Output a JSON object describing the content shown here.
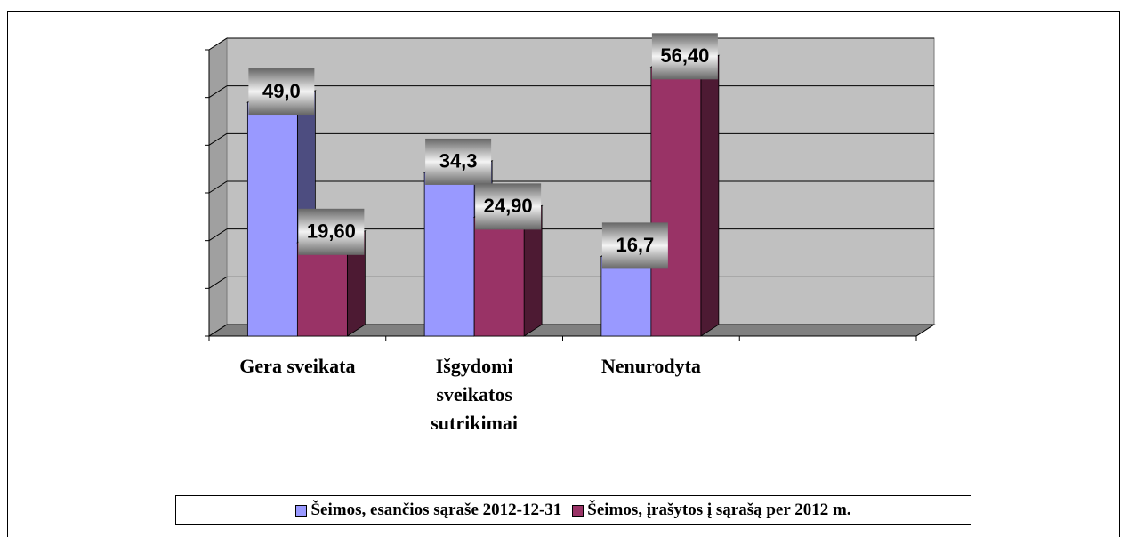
{
  "chart_data": {
    "type": "bar3d",
    "categories": [
      "Gera sveikata",
      "Išgydomi sveikatos sutrikimai",
      "Nenurodyta",
      null
    ],
    "series": [
      {
        "name": "Šeimos, esančios sąraše 2012-12-31",
        "color": "#9999ff",
        "values": [
          49.0,
          34.3,
          16.7,
          null
        ],
        "value_labels": [
          "49,0",
          "34,3",
          "16,7",
          null
        ]
      },
      {
        "name": "Šeimos, įrašytos į sąrašą per 2012 m.",
        "color": "#993366",
        "values": [
          19.6,
          24.9,
          56.4,
          null
        ],
        "value_labels": [
          "19,60",
          "24,90",
          "56,40",
          null
        ]
      }
    ],
    "ylim": [
      0,
      60
    ],
    "yticks": [
      0,
      10,
      20,
      30,
      40,
      50,
      60
    ],
    "grid": true
  }
}
